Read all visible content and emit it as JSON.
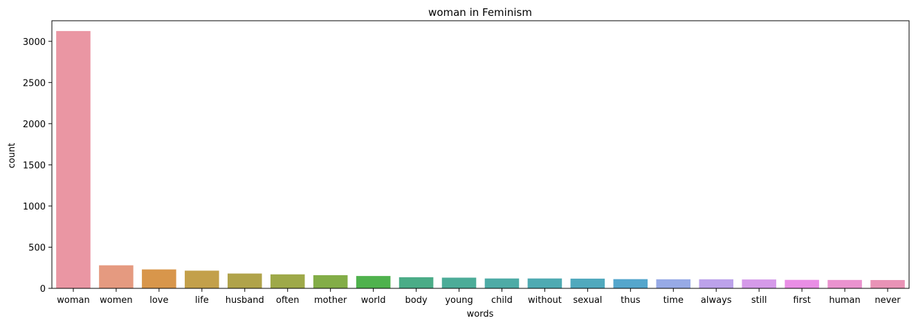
{
  "chart_data": {
    "type": "bar",
    "title": "woman in Feminism",
    "xlabel": "words",
    "ylabel": "count",
    "ylim": [
      0,
      3250
    ],
    "yticks": [
      0,
      500,
      1000,
      1500,
      2000,
      2500,
      3000
    ],
    "ytick_labels": [
      "0",
      "500",
      "1000",
      "1500",
      "2000",
      "2500",
      "3000"
    ],
    "grid": false,
    "categories": [
      "woman",
      "women",
      "love",
      "life",
      "husband",
      "often",
      "mother",
      "world",
      "body",
      "young",
      "child",
      "without",
      "sexual",
      "thus",
      "time",
      "always",
      "still",
      "first",
      "human",
      "never"
    ],
    "values": [
      3125,
      280,
      230,
      215,
      180,
      170,
      160,
      150,
      135,
      130,
      120,
      120,
      118,
      112,
      110,
      110,
      108,
      103,
      102,
      101
    ],
    "colors": [
      "#ea96a3",
      "#e59a80",
      "#d8964b",
      "#c3a04a",
      "#b0a34a",
      "#9ea949",
      "#83ad47",
      "#4fb24d",
      "#4bac87",
      "#4cac98",
      "#4eaba6",
      "#4faab2",
      "#51a9bd",
      "#55a6cc",
      "#97aae6",
      "#bca2ea",
      "#d59ae9",
      "#e98ee5",
      "#ea93cf",
      "#e993b6"
    ]
  }
}
